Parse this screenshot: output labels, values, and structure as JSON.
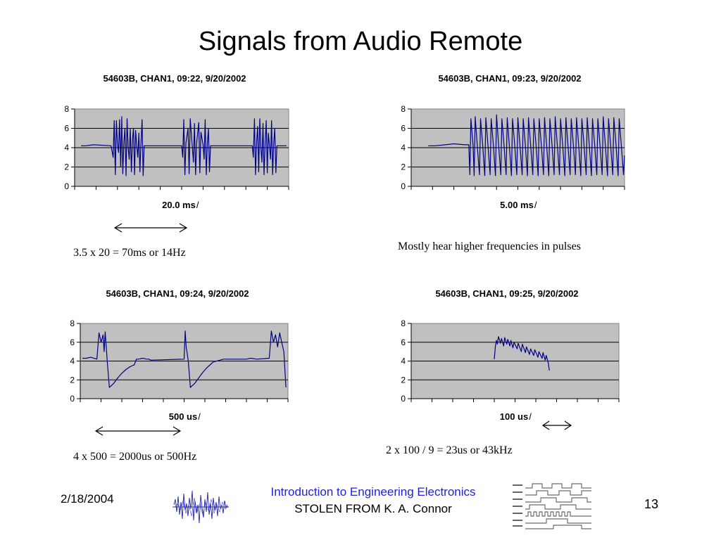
{
  "slide": {
    "title": "Signals from Audio Remote",
    "footer_date": "2/18/2004",
    "footer_course": "Introduction to Engineering Electronics",
    "footer_stolen": "STOLEN FROM",
    "footer_author": " K. A. Connor",
    "page_number": "13"
  },
  "notes": {
    "n1": "3.5 x 20 = 70ms or 14Hz",
    "n2": "Mostly hear higher frequencies in pulses",
    "n3": "4 x 500 = 2000us or 500Hz",
    "n4": "2 x 100 / 9 = 23us or 43kHz"
  },
  "colors": {
    "plot_bg": "#c0c0c0",
    "trace": "#000080",
    "course_text": "#1f1fd6"
  },
  "icons": [
    "noise-waveform-logo",
    "timing-diagram-logo",
    "double-arrow-icon"
  ],
  "chart_data": [
    {
      "type": "line",
      "title": "54603B, CHAN1, 09:22, 9/20/2002",
      "xlabel": "20.0 ms",
      "xlabel_suffix": "/",
      "ylim": [
        0,
        8
      ],
      "yticks": [
        "0",
        "2",
        "4",
        "6",
        "8"
      ],
      "xdiv": 10,
      "grid": "horizontal",
      "legend": "none",
      "series": [
        {
          "values": [
            [
              0.3,
              4.2
            ],
            [
              0.5,
              4.2
            ],
            [
              0.9,
              4.3
            ],
            [
              1.7,
              4.2
            ],
            [
              1.8,
              3.0
            ],
            [
              1.85,
              6.8
            ],
            [
              1.9,
              1.2
            ],
            [
              1.95,
              6.8
            ],
            [
              2.0,
              4.4
            ],
            [
              2.05,
              3.5
            ],
            [
              2.1,
              6.9
            ],
            [
              2.15,
              2.0
            ],
            [
              2.2,
              7.2
            ],
            [
              2.25,
              1.3
            ],
            [
              2.3,
              4.5
            ],
            [
              2.35,
              6.0
            ],
            [
              2.4,
              1.1
            ],
            [
              2.45,
              7.0
            ],
            [
              2.5,
              4.0
            ],
            [
              2.55,
              2.8
            ],
            [
              2.6,
              6.0
            ],
            [
              2.65,
              1.5
            ],
            [
              2.7,
              4.8
            ],
            [
              2.75,
              6.0
            ],
            [
              2.8,
              1.2
            ],
            [
              2.85,
              5.8
            ],
            [
              2.9,
              4.2
            ],
            [
              2.95,
              3.0
            ],
            [
              3.0,
              5.5
            ],
            [
              3.05,
              1.5
            ],
            [
              3.1,
              4.4
            ],
            [
              3.15,
              6.9
            ],
            [
              3.2,
              1.1
            ],
            [
              3.25,
              4.2
            ],
            [
              3.5,
              4.2
            ],
            [
              4.0,
              4.2
            ],
            [
              5.0,
              4.2
            ],
            [
              5.05,
              3.0
            ],
            [
              5.1,
              6.9
            ],
            [
              5.15,
              1.2
            ],
            [
              5.2,
              4.5
            ],
            [
              5.3,
              6.0
            ],
            [
              5.35,
              1.3
            ],
            [
              5.4,
              7.0
            ],
            [
              5.5,
              4.0
            ],
            [
              5.55,
              2.5
            ],
            [
              5.6,
              6.5
            ],
            [
              5.65,
              1.2
            ],
            [
              5.7,
              4.5
            ],
            [
              5.8,
              6.6
            ],
            [
              5.85,
              1.4
            ],
            [
              5.9,
              5.6
            ],
            [
              6.0,
              4.3
            ],
            [
              6.05,
              2.8
            ],
            [
              6.1,
              6.9
            ],
            [
              6.15,
              1.2
            ],
            [
              6.2,
              4.4
            ],
            [
              6.25,
              6.0
            ],
            [
              6.3,
              1.5
            ],
            [
              6.35,
              4.2
            ],
            [
              8.3,
              4.2
            ],
            [
              8.35,
              3.0
            ],
            [
              8.4,
              7.0
            ],
            [
              8.45,
              1.2
            ],
            [
              8.5,
              4.5
            ],
            [
              8.55,
              6.2
            ],
            [
              8.6,
              1.5
            ],
            [
              8.65,
              7.0
            ],
            [
              8.7,
              4.0
            ],
            [
              8.75,
              2.5
            ],
            [
              8.8,
              6.5
            ],
            [
              8.85,
              1.2
            ],
            [
              8.9,
              4.5
            ],
            [
              8.95,
              6.8
            ],
            [
              9.0,
              1.4
            ],
            [
              9.05,
              5.5
            ],
            [
              9.1,
              4.3
            ],
            [
              9.15,
              2.8
            ],
            [
              9.2,
              6.8
            ],
            [
              9.25,
              1.2
            ],
            [
              9.3,
              4.4
            ],
            [
              9.35,
              6.0
            ],
            [
              9.4,
              1.4
            ],
            [
              9.45,
              4.2
            ],
            [
              9.9,
              4.2
            ]
          ]
        }
      ]
    },
    {
      "type": "line",
      "title": "54603B, CHAN1, 09:23, 9/20/2002",
      "xlabel": "5.00 ms",
      "xlabel_suffix": "/",
      "ylim": [
        0,
        8
      ],
      "yticks": [
        "0",
        "2",
        "4",
        "6",
        "8"
      ],
      "xdiv": 10,
      "grid": "horizontal",
      "legend": "none",
      "series": [
        {
          "values": [
            [
              0.8,
              4.2
            ],
            [
              1.1,
              4.2
            ],
            [
              1.6,
              4.3
            ],
            [
              2.0,
              4.4
            ],
            [
              2.5,
              4.3
            ],
            [
              2.7,
              4.3
            ],
            [
              2.75,
              1.2
            ],
            [
              2.8,
              7.0
            ],
            [
              2.9,
              4.2
            ],
            [
              2.95,
              1.1
            ],
            [
              3.0,
              7.2
            ],
            [
              3.1,
              4.2
            ],
            [
              3.2,
              1.2
            ],
            [
              3.25,
              7.0
            ],
            [
              3.35,
              4.3
            ],
            [
              3.45,
              1.1
            ],
            [
              3.5,
              7.1
            ],
            [
              3.6,
              4.2
            ],
            [
              3.7,
              1.2
            ],
            [
              3.75,
              7.0
            ],
            [
              3.85,
              4.3
            ],
            [
              3.95,
              1.1
            ],
            [
              4.0,
              7.4
            ],
            [
              4.1,
              4.2
            ],
            [
              4.2,
              1.2
            ],
            [
              4.25,
              7.0
            ],
            [
              4.35,
              4.3
            ],
            [
              4.45,
              1.2
            ],
            [
              4.5,
              7.1
            ],
            [
              4.6,
              4.2
            ],
            [
              4.7,
              1.1
            ],
            [
              4.75,
              7.0
            ],
            [
              4.85,
              4.3
            ],
            [
              4.95,
              1.2
            ],
            [
              5.0,
              7.1
            ],
            [
              5.1,
              4.2
            ],
            [
              5.2,
              1.2
            ],
            [
              5.25,
              7.0
            ],
            [
              5.35,
              4.3
            ],
            [
              5.45,
              1.1
            ],
            [
              5.5,
              7.1
            ],
            [
              5.6,
              4.2
            ],
            [
              5.7,
              1.2
            ],
            [
              5.75,
              7.0
            ],
            [
              5.85,
              4.3
            ],
            [
              5.95,
              1.1
            ],
            [
              6.0,
              7.0
            ],
            [
              6.1,
              4.3
            ],
            [
              6.2,
              1.2
            ],
            [
              6.25,
              7.1
            ],
            [
              6.35,
              4.2
            ],
            [
              6.45,
              1.1
            ],
            [
              6.5,
              7.0
            ],
            [
              6.6,
              4.3
            ],
            [
              6.7,
              1.2
            ],
            [
              6.75,
              7.2
            ],
            [
              6.85,
              4.2
            ],
            [
              6.95,
              1.2
            ],
            [
              7.0,
              7.0
            ],
            [
              7.1,
              4.3
            ],
            [
              7.2,
              1.1
            ],
            [
              7.25,
              7.1
            ],
            [
              7.35,
              4.2
            ],
            [
              7.45,
              1.2
            ],
            [
              7.5,
              7.0
            ],
            [
              7.6,
              4.3
            ],
            [
              7.7,
              1.2
            ],
            [
              7.75,
              7.1
            ],
            [
              7.85,
              4.2
            ],
            [
              7.95,
              1.1
            ],
            [
              8.0,
              7.0
            ],
            [
              8.1,
              4.3
            ],
            [
              8.2,
              1.2
            ],
            [
              8.25,
              7.1
            ],
            [
              8.35,
              4.2
            ],
            [
              8.45,
              1.1
            ],
            [
              8.5,
              7.0
            ],
            [
              8.6,
              4.3
            ],
            [
              8.7,
              1.2
            ],
            [
              8.75,
              7.0
            ],
            [
              8.85,
              4.2
            ],
            [
              8.95,
              1.2
            ],
            [
              9.0,
              7.2
            ],
            [
              9.1,
              4.3
            ],
            [
              9.2,
              1.1
            ],
            [
              9.25,
              7.0
            ],
            [
              9.35,
              4.2
            ],
            [
              9.45,
              1.2
            ],
            [
              9.5,
              7.1
            ],
            [
              9.6,
              4.3
            ],
            [
              9.7,
              1.1
            ],
            [
              9.75,
              7.0
            ],
            [
              9.85,
              4.2
            ],
            [
              9.95,
              1.2
            ],
            [
              10.0,
              3.2
            ]
          ]
        }
      ]
    },
    {
      "type": "line",
      "title": "54603B, CHAN1, 09:24, 9/20/2002",
      "xlabel": "500 us",
      "xlabel_suffix": "/",
      "ylim": [
        0,
        8
      ],
      "yticks": [
        "0",
        "2",
        "4",
        "6",
        "8"
      ],
      "xdiv": 10,
      "grid": "horizontal",
      "legend": "none",
      "series": [
        {
          "values": [
            [
              0.1,
              4.3
            ],
            [
              0.3,
              4.3
            ],
            [
              0.5,
              4.4
            ],
            [
              0.8,
              4.2
            ],
            [
              0.9,
              7.0
            ],
            [
              1.0,
              6.0
            ],
            [
              1.1,
              6.8
            ],
            [
              1.15,
              5.0
            ],
            [
              1.2,
              7.1
            ],
            [
              1.25,
              5.5
            ],
            [
              1.3,
              4.0
            ],
            [
              1.4,
              1.2
            ],
            [
              1.6,
              1.6
            ],
            [
              1.8,
              2.2
            ],
            [
              2.0,
              2.7
            ],
            [
              2.2,
              3.1
            ],
            [
              2.4,
              3.4
            ],
            [
              2.6,
              3.6
            ],
            [
              2.7,
              4.2
            ],
            [
              2.8,
              4.2
            ],
            [
              3.0,
              4.3
            ],
            [
              3.2,
              4.2
            ],
            [
              3.3,
              4.2
            ],
            [
              3.4,
              4.1
            ],
            [
              5.0,
              4.2
            ],
            [
              5.05,
              7.2
            ],
            [
              5.1,
              5.5
            ],
            [
              5.15,
              4.8
            ],
            [
              5.2,
              4.0
            ],
            [
              5.3,
              1.2
            ],
            [
              5.5,
              1.6
            ],
            [
              5.7,
              2.2
            ],
            [
              5.9,
              2.8
            ],
            [
              6.1,
              3.3
            ],
            [
              6.3,
              3.7
            ],
            [
              6.4,
              3.9
            ],
            [
              6.9,
              4.2
            ],
            [
              7.8,
              4.2
            ],
            [
              8.0,
              4.2
            ],
            [
              8.2,
              4.3
            ],
            [
              8.5,
              4.2
            ],
            [
              9.1,
              4.3
            ],
            [
              9.2,
              7.2
            ],
            [
              9.3,
              6.0
            ],
            [
              9.4,
              6.8
            ],
            [
              9.5,
              5.5
            ],
            [
              9.6,
              7.0
            ],
            [
              9.7,
              6.0
            ],
            [
              9.8,
              5.0
            ],
            [
              9.9,
              1.2
            ]
          ]
        }
      ]
    },
    {
      "type": "line",
      "title": "54603B, CHAN1, 09:25, 9/20/2002",
      "xlabel": "100 us",
      "xlabel_suffix": "/",
      "ylim": [
        0,
        8
      ],
      "yticks": [
        "0",
        "2",
        "4",
        "6",
        "8"
      ],
      "xdiv": 10,
      "grid": "horizontal",
      "legend": "none",
      "series": [
        {
          "values": [
            [
              4.0,
              4.2
            ],
            [
              4.05,
              5.5
            ],
            [
              4.1,
              6.2
            ],
            [
              4.15,
              5.8
            ],
            [
              4.2,
              6.6
            ],
            [
              4.3,
              5.9
            ],
            [
              4.35,
              6.4
            ],
            [
              4.45,
              5.6
            ],
            [
              4.5,
              6.5
            ],
            [
              4.6,
              5.8
            ],
            [
              4.65,
              6.3
            ],
            [
              4.75,
              5.6
            ],
            [
              4.8,
              6.2
            ],
            [
              4.9,
              5.4
            ],
            [
              4.95,
              6.0
            ],
            [
              5.1,
              5.3
            ],
            [
              5.15,
              5.9
            ],
            [
              5.3,
              5.0
            ],
            [
              5.35,
              5.8
            ],
            [
              5.5,
              4.9
            ],
            [
              5.55,
              5.5
            ],
            [
              5.7,
              4.7
            ],
            [
              5.75,
              5.3
            ],
            [
              5.9,
              4.6
            ],
            [
              5.95,
              5.2
            ],
            [
              6.1,
              4.4
            ],
            [
              6.15,
              5.0
            ],
            [
              6.3,
              4.3
            ],
            [
              6.35,
              4.9
            ],
            [
              6.45,
              4.1
            ],
            [
              6.5,
              4.6
            ],
            [
              6.6,
              3.8
            ],
            [
              6.65,
              3.0
            ]
          ]
        }
      ]
    }
  ]
}
